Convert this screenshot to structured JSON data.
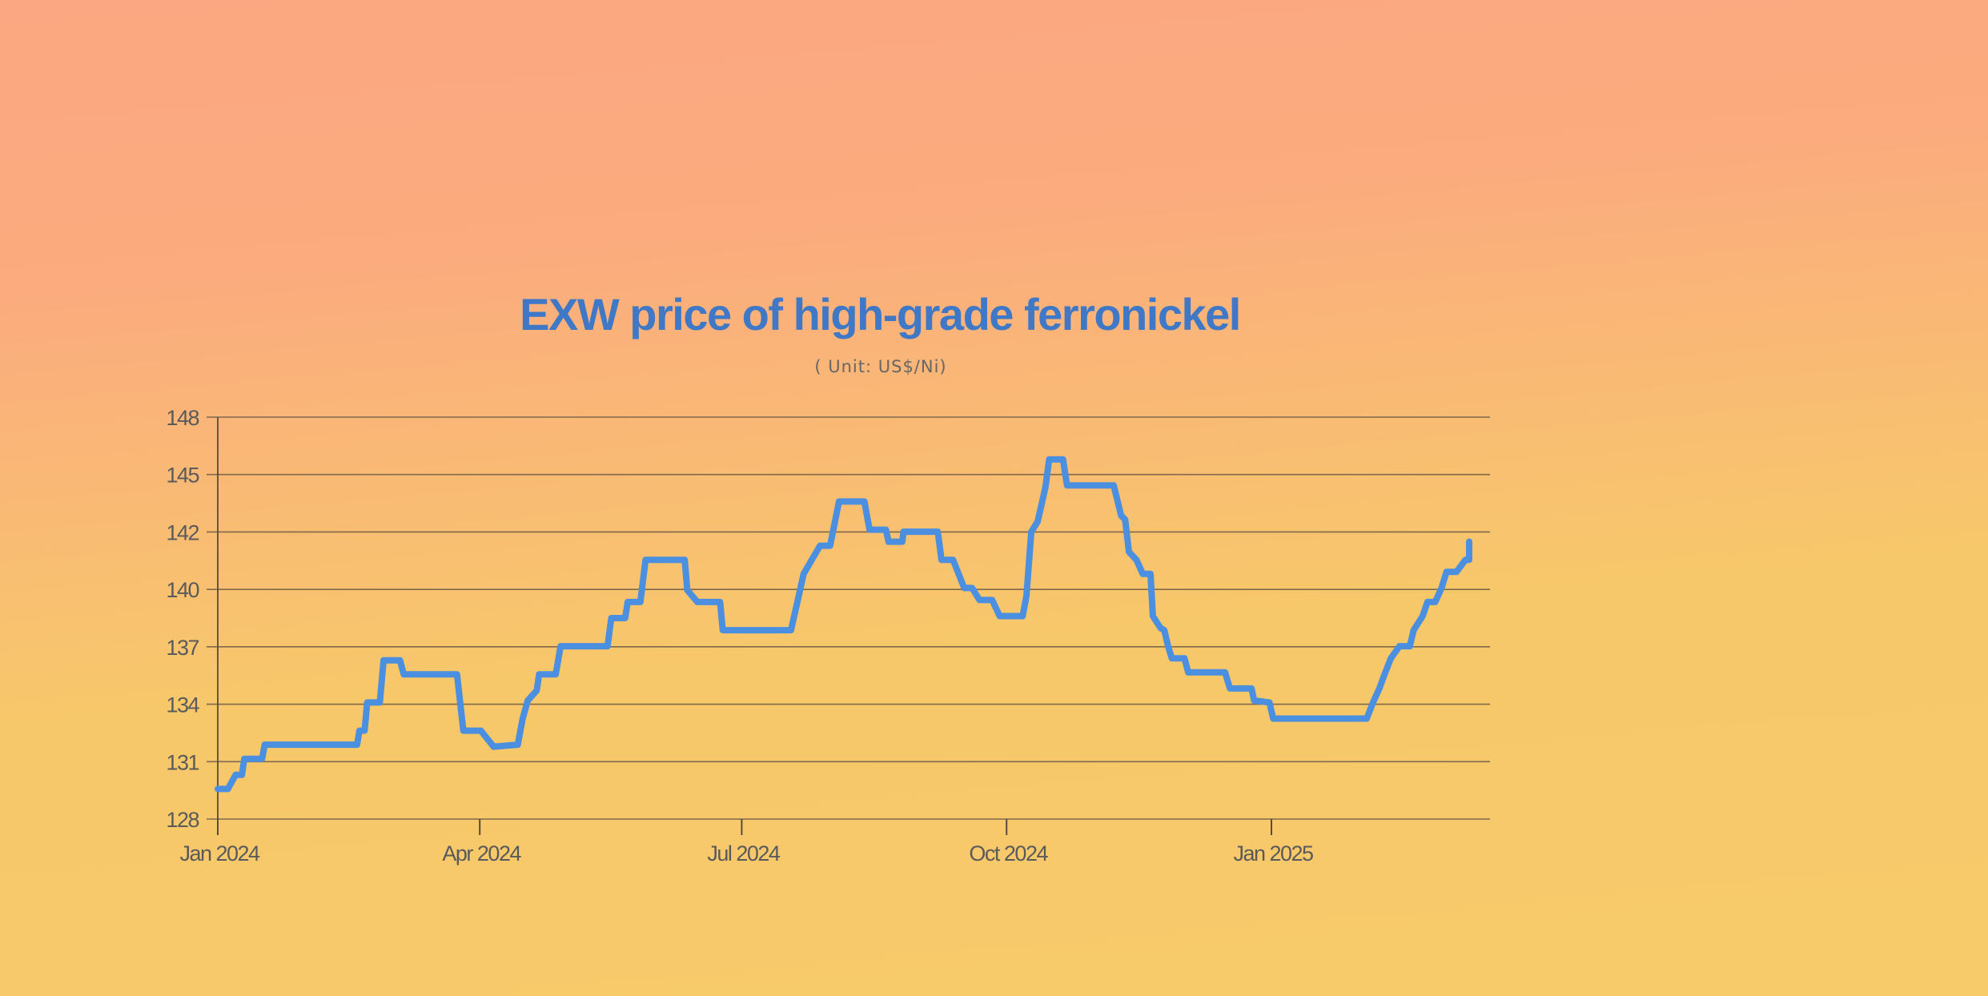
{
  "chart_data": {
    "type": "line",
    "title": "EXW price of high-grade ferronickel",
    "subtitle": "( Unit: US$/Ni)",
    "xlabel": "",
    "ylabel": "",
    "ylim": [
      128,
      148
    ],
    "y_ticks": [
      "128",
      "131",
      "134",
      "137",
      "140",
      "142",
      "145",
      "148"
    ],
    "x_ticks": [
      {
        "label": "Jan 2024",
        "day": 0
      },
      {
        "label": "Apr 2024",
        "day": 91
      },
      {
        "label": "Jul 2024",
        "day": 182
      },
      {
        "label": "Oct 2024",
        "day": 274
      },
      {
        "label": "Jan 2025",
        "day": 366
      }
    ],
    "x_unit": "days since 2024-01-01",
    "grid": true,
    "line_color": "#4a8fe0",
    "series": [
      {
        "name": "EXW price",
        "points": [
          [
            0,
            129.5
          ],
          [
            3.5,
            129.5
          ],
          [
            6.2,
            130.2
          ],
          [
            8.4,
            130.2
          ],
          [
            9.2,
            131.0
          ],
          [
            15.4,
            131.0
          ],
          [
            16.3,
            131.7
          ],
          [
            48.4,
            131.7
          ],
          [
            49.2,
            132.4
          ],
          [
            51,
            132.4
          ],
          [
            51.9,
            133.8
          ],
          [
            56.3,
            133.8
          ],
          [
            57.6,
            135.9
          ],
          [
            63.3,
            135.9
          ],
          [
            64.6,
            135.2
          ],
          [
            83.1,
            135.2
          ],
          [
            85.3,
            132.4
          ],
          [
            91.4,
            132.4
          ],
          [
            95.8,
            131.6
          ],
          [
            104.2,
            131.7
          ],
          [
            105.9,
            133.0
          ],
          [
            107.7,
            133.9
          ],
          [
            110.8,
            134.4
          ],
          [
            111.6,
            135.2
          ],
          [
            117.4,
            135.2
          ],
          [
            119.1,
            136.6
          ],
          [
            135.4,
            136.6
          ],
          [
            136.7,
            138.0
          ],
          [
            141.5,
            138.0
          ],
          [
            142.4,
            138.8
          ],
          [
            146.8,
            138.8
          ],
          [
            148.6,
            140.9
          ],
          [
            162.2,
            140.9
          ],
          [
            163.1,
            139.4
          ],
          [
            166.6,
            138.8
          ],
          [
            174.5,
            138.8
          ],
          [
            175.4,
            137.4
          ],
          [
            199.1,
            137.4
          ],
          [
            201.8,
            139.1
          ],
          [
            203.5,
            140.2
          ],
          [
            209.2,
            141.6
          ],
          [
            212.7,
            141.6
          ],
          [
            215.8,
            143.8
          ],
          [
            224.6,
            143.8
          ],
          [
            226.4,
            142.4
          ],
          [
            232.1,
            142.4
          ],
          [
            233,
            141.8
          ],
          [
            237.8,
            141.8
          ],
          [
            238.2,
            142.3
          ],
          [
            250.1,
            142.3
          ],
          [
            251.4,
            140.9
          ],
          [
            255.4,
            140.9
          ],
          [
            259.3,
            139.5
          ],
          [
            262,
            139.5
          ],
          [
            264.6,
            138.9
          ],
          [
            269,
            138.9
          ],
          [
            271.6,
            138.1
          ],
          [
            279.6,
            138.1
          ],
          [
            280.9,
            139.1
          ],
          [
            282.6,
            142.3
          ],
          [
            284.8,
            142.8
          ],
          [
            287.5,
            144.5
          ],
          [
            288.8,
            145.9
          ],
          [
            293.6,
            145.9
          ],
          [
            295,
            144.6
          ],
          [
            311.2,
            144.6
          ],
          [
            313.8,
            143.1
          ],
          [
            315.2,
            142.9
          ],
          [
            316.5,
            141.3
          ],
          [
            319.1,
            140.9
          ],
          [
            321.3,
            140.2
          ],
          [
            324,
            140.2
          ],
          [
            324.8,
            138.1
          ],
          [
            327.5,
            137.5
          ],
          [
            328.8,
            137.4
          ],
          [
            330.1,
            136.6
          ],
          [
            331.4,
            136.0
          ],
          [
            335.8,
            136.0
          ],
          [
            337.1,
            135.3
          ],
          [
            349.9,
            135.3
          ],
          [
            351.6,
            134.5
          ],
          [
            359.1,
            134.5
          ],
          [
            360,
            133.9
          ],
          [
            365.3,
            133.8
          ],
          [
            366.6,
            133.0
          ],
          [
            399.1,
            133.0
          ],
          [
            401.3,
            133.8
          ],
          [
            403.5,
            134.5
          ],
          [
            405.3,
            135.2
          ],
          [
            407.5,
            136.0
          ],
          [
            410.5,
            136.6
          ],
          [
            414.1,
            136.6
          ],
          [
            415.4,
            137.4
          ],
          [
            418.5,
            138.1
          ],
          [
            420.2,
            138.8
          ],
          [
            422.9,
            138.8
          ],
          [
            425.1,
            139.5
          ],
          [
            426.8,
            140.3
          ],
          [
            430.3,
            140.3
          ],
          [
            433.4,
            140.9
          ],
          [
            434.7,
            140.9
          ],
          [
            434.7,
            141.8
          ]
        ]
      }
    ]
  }
}
